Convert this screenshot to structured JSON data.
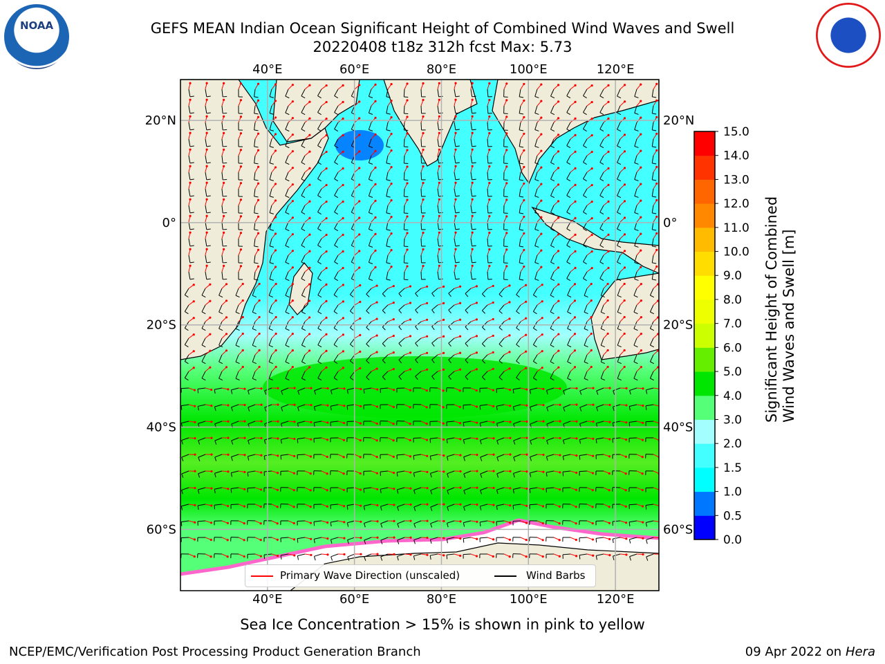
{
  "title": {
    "line1": "GEFS MEAN Indian Ocean Significant Height of Combined Wind Waves and Swell",
    "line2": "20220408 t18z 312h fcst   Max: 5.73"
  },
  "logos": {
    "left": {
      "text": "NOAA",
      "icon": "noaa-logo-icon"
    },
    "right": {
      "icon": "nws-logo-icon"
    }
  },
  "map": {
    "lon_min": 20,
    "lon_max": 130,
    "lat_min": -72,
    "lat_max": 28,
    "lon_ticks": [
      40,
      60,
      80,
      100,
      120
    ],
    "lon_tick_labels": [
      "40°E",
      "60°E",
      "80°E",
      "100°E",
      "120°E"
    ],
    "lat_ticks": [
      20,
      0,
      -20,
      -40,
      -60
    ],
    "lat_tick_labels": [
      "20°N",
      "0°",
      "20°S",
      "40°S",
      "60°S"
    ],
    "grid": true,
    "land_color": "#efedd9",
    "ice_color": "#ffffff"
  },
  "legend": {
    "placement": "bottom-center",
    "entries": [
      {
        "label": "Primary Wave Direction (unscaled)",
        "color": "#ff0000"
      },
      {
        "label": "Wind Barbs",
        "color": "#000000"
      }
    ]
  },
  "colorbar": {
    "label": "Significant Height of Combined Wind Waves and Swell [m]",
    "label_line1": "Significant Height of Combined",
    "label_line2": "Wind Waves and Swell [m]",
    "ticks": [
      "0.0",
      "0.5",
      "1.0",
      "1.5",
      "2.0",
      "3.0",
      "4.0",
      "5.0",
      "6.0",
      "7.0",
      "8.0",
      "9.0",
      "10.0",
      "11.0",
      "12.0",
      "13.0",
      "14.0",
      "15.0"
    ],
    "colors": [
      "#0000ff",
      "#0077ff",
      "#00ffff",
      "#44ffff",
      "#a3ffff",
      "#55ff77",
      "#00e600",
      "#66ee00",
      "#ccff00",
      "#eeff00",
      "#ffff00",
      "#ffdd00",
      "#ffbb00",
      "#ff8800",
      "#ff6600",
      "#ff3300",
      "#ff0000"
    ]
  },
  "caption": "Sea Ice Concentration > 15% is shown in pink to yellow",
  "footer": {
    "left": "NCEP/EMC/Verification Post Processing Product Generation Branch",
    "right_date": "09 Apr 2022 on ",
    "right_host": "Hera"
  }
}
